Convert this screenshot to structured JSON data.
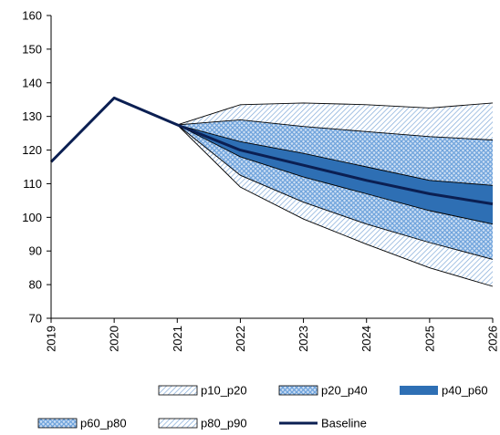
{
  "chart_data": {
    "type": "area",
    "title": "",
    "xlabel": "",
    "ylabel": "",
    "x": [
      "2019",
      "2020",
      "2021",
      "2022",
      "2023",
      "2024",
      "2025",
      "2026"
    ],
    "ylim": [
      70,
      160
    ],
    "yticks": [
      70,
      80,
      90,
      100,
      110,
      120,
      130,
      140,
      150,
      160
    ],
    "grid": false,
    "legend_position": "bottom",
    "fan_start": "2021",
    "fan_x": [
      "2021",
      "2022",
      "2023",
      "2024",
      "2025",
      "2026"
    ],
    "percentiles": {
      "p10": [
        127.5,
        109,
        99.5,
        92,
        85,
        79.5
      ],
      "p20": [
        127.5,
        112.5,
        104.5,
        98,
        92.5,
        87.5
      ],
      "p40": [
        127.5,
        118,
        112,
        107,
        102,
        98
      ],
      "p60": [
        127.5,
        122.5,
        119,
        115,
        111,
        109.5
      ],
      "p80": [
        127.5,
        129,
        127,
        125.5,
        124,
        123
      ],
      "p90": [
        127.5,
        133.5,
        134,
        133.5,
        132.5,
        134
      ]
    },
    "series": [
      {
        "name": "Baseline",
        "x": [
          "2019",
          "2020",
          "2021",
          "2022",
          "2023",
          "2024",
          "2025",
          "2026"
        ],
        "values": [
          116.5,
          135.5,
          127.5,
          120,
          115.5,
          111,
          107,
          104
        ]
      }
    ],
    "bands": [
      {
        "name": "p10_p20",
        "lower": "p10",
        "upper": "p20",
        "fill": "diag-fine"
      },
      {
        "name": "p20_p40",
        "lower": "p20",
        "upper": "p40",
        "fill": "crosshatch"
      },
      {
        "name": "p40_p60",
        "lower": "p40",
        "upper": "p60",
        "fill": "solid"
      },
      {
        "name": "p60_p80",
        "lower": "p60",
        "upper": "p80",
        "fill": "crosshatch"
      },
      {
        "name": "p80_p90",
        "lower": "p80",
        "upper": "p90",
        "fill": "diag-fine"
      }
    ],
    "legend": [
      "p10_p20",
      "p20_p40",
      "p40_p60",
      "p60_p80",
      "p80_p90",
      "Baseline"
    ],
    "colors": {
      "baseline": "#0b1f52",
      "solid_band": "#2e6fb4",
      "crosshatch": "#6fa3dc",
      "crosshatch_bg": "#cfe0f4",
      "diag": "#7fa9d8",
      "outline": "#000000",
      "axis": "#000000"
    }
  }
}
